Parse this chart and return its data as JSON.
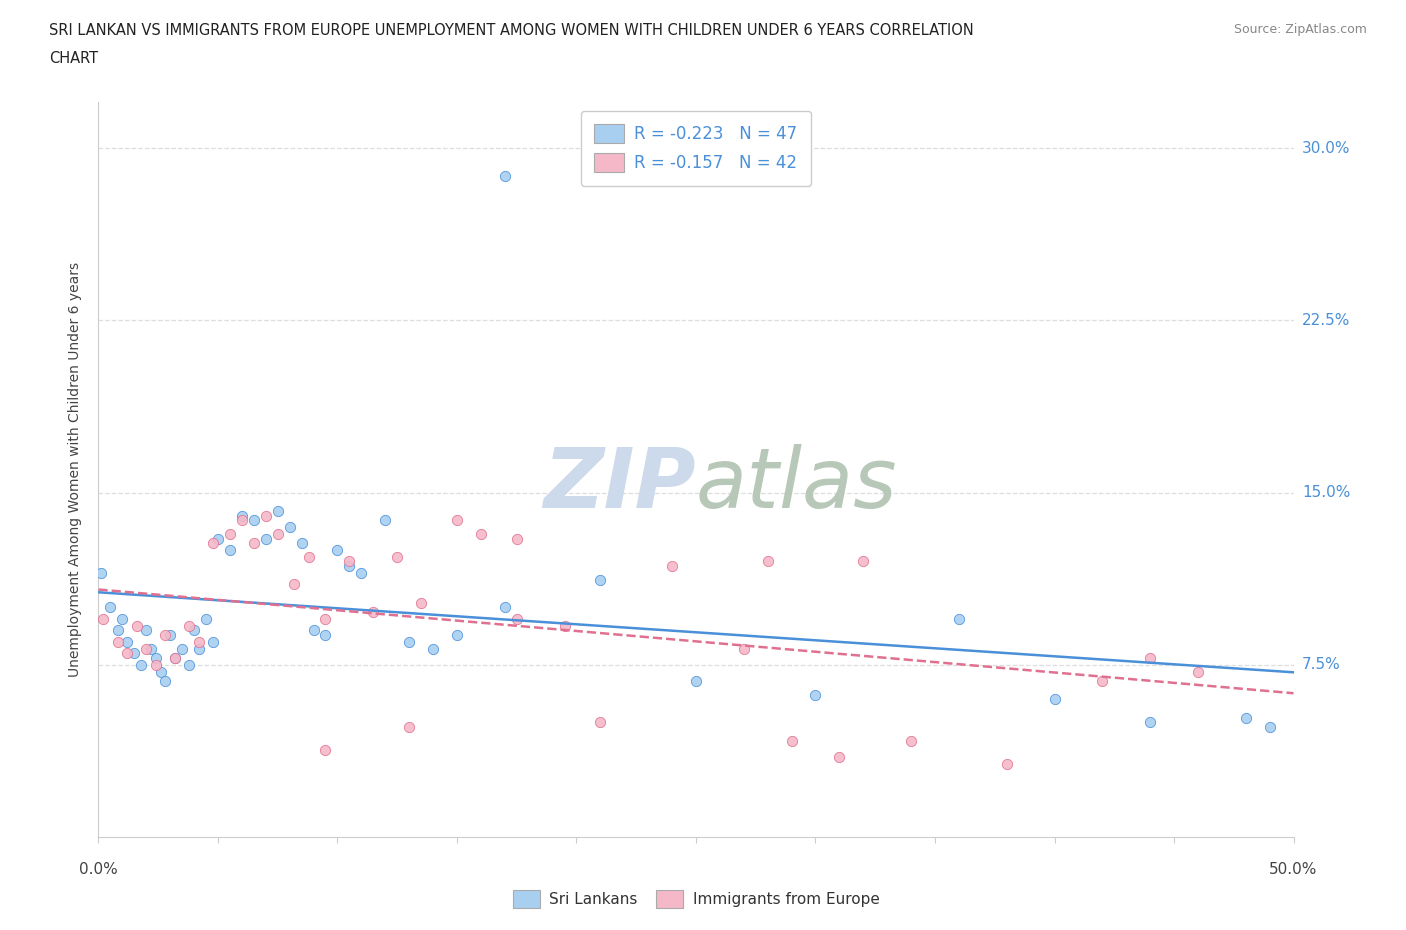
{
  "title_line1": "SRI LANKAN VS IMMIGRANTS FROM EUROPE UNEMPLOYMENT AMONG WOMEN WITH CHILDREN UNDER 6 YEARS CORRELATION",
  "title_line2": "CHART",
  "source_text": "Source: ZipAtlas.com",
  "ylabel": "Unemployment Among Women with Children Under 6 years",
  "xlim": [
    0.0,
    0.5
  ],
  "ylim": [
    0.0,
    0.32
  ],
  "grid_color": "#dedede",
  "background_color": "#ffffff",
  "sri_lankans_color": "#a8cff0",
  "immigrants_color": "#f5b8c8",
  "sri_lankans_line_color": "#4a90d9",
  "immigrants_line_color": "#e07090",
  "watermark_text": "ZIPatlas",
  "watermark_color": "#ccdaeb",
  "legend_r1": "R = -0.223   N = 47",
  "legend_r2": "R = -0.157   N = 42",
  "sl_x": [
    0.001,
    0.005,
    0.008,
    0.01,
    0.012,
    0.015,
    0.018,
    0.02,
    0.022,
    0.024,
    0.026,
    0.028,
    0.03,
    0.032,
    0.035,
    0.038,
    0.04,
    0.042,
    0.045,
    0.048,
    0.05,
    0.055,
    0.06,
    0.065,
    0.07,
    0.075,
    0.08,
    0.085,
    0.09,
    0.095,
    0.1,
    0.105,
    0.11,
    0.12,
    0.13,
    0.14,
    0.15,
    0.17,
    0.21,
    0.25,
    0.3,
    0.36,
    0.4,
    0.44,
    0.48,
    0.49,
    0.17
  ],
  "sl_y": [
    0.115,
    0.1,
    0.09,
    0.095,
    0.085,
    0.08,
    0.075,
    0.09,
    0.082,
    0.078,
    0.072,
    0.068,
    0.088,
    0.078,
    0.082,
    0.075,
    0.09,
    0.082,
    0.095,
    0.085,
    0.13,
    0.125,
    0.14,
    0.138,
    0.13,
    0.142,
    0.135,
    0.128,
    0.09,
    0.088,
    0.125,
    0.118,
    0.115,
    0.138,
    0.085,
    0.082,
    0.088,
    0.1,
    0.112,
    0.068,
    0.062,
    0.095,
    0.06,
    0.05,
    0.052,
    0.048,
    0.288
  ],
  "im_x": [
    0.002,
    0.008,
    0.012,
    0.016,
    0.02,
    0.024,
    0.028,
    0.032,
    0.038,
    0.042,
    0.048,
    0.055,
    0.06,
    0.065,
    0.07,
    0.075,
    0.082,
    0.088,
    0.095,
    0.105,
    0.115,
    0.125,
    0.135,
    0.15,
    0.16,
    0.175,
    0.195,
    0.21,
    0.24,
    0.27,
    0.29,
    0.31,
    0.34,
    0.38,
    0.42,
    0.44,
    0.46,
    0.175,
    0.13,
    0.095,
    0.32,
    0.28
  ],
  "im_y": [
    0.095,
    0.085,
    0.08,
    0.092,
    0.082,
    0.075,
    0.088,
    0.078,
    0.092,
    0.085,
    0.128,
    0.132,
    0.138,
    0.128,
    0.14,
    0.132,
    0.11,
    0.122,
    0.095,
    0.12,
    0.098,
    0.122,
    0.102,
    0.138,
    0.132,
    0.095,
    0.092,
    0.05,
    0.118,
    0.082,
    0.042,
    0.035,
    0.042,
    0.032,
    0.068,
    0.078,
    0.072,
    0.13,
    0.048,
    0.038,
    0.12,
    0.12
  ]
}
